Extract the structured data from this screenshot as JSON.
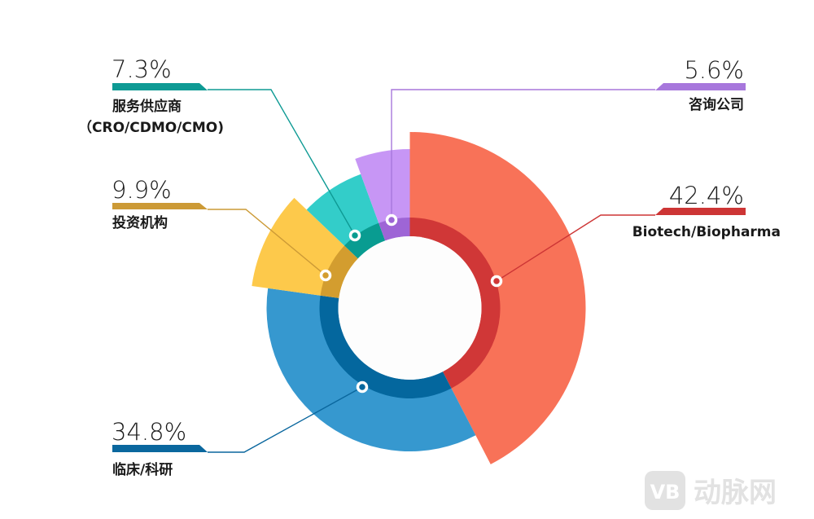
{
  "chart_data": {
    "type": "pie",
    "variant": "nightingale-rose-donut",
    "start": "top",
    "direction": "clockwise",
    "slices": [
      {
        "label": "Biotech/Biopharma",
        "value": 42.4,
        "value_label": "42.4%",
        "color": "#f87258",
        "ring_color": "#d03737",
        "label_color": "#cd3535",
        "side": "right"
      },
      {
        "label": "临床/科研",
        "value": 34.8,
        "value_label": "34.8%",
        "color": "#3698cf",
        "ring_color": "#04679e",
        "label_color": "#0a679e",
        "side": "left"
      },
      {
        "label": "投资机构",
        "value": 9.9,
        "value_label": "9.9%",
        "color": "#fdc94b",
        "ring_color": "#d39d2f",
        "label_color": "#cc9a36",
        "side": "left"
      },
      {
        "label": "服务供应商",
        "label_line2": "（CRO/CDMO/CMO)",
        "value": 7.3,
        "value_label": "7.3%",
        "color": "#33cdc9",
        "ring_color": "#099c91",
        "label_color": "#0e9a94",
        "side": "left"
      },
      {
        "label": "咨询公司",
        "value": 5.6,
        "value_label": "5.6%",
        "color": "#c796f5",
        "ring_color": "#9e65d6",
        "label_color": "#a777dc",
        "side": "right"
      }
    ]
  },
  "watermark": {
    "logo_text": "VB",
    "text": "动脉网"
  }
}
